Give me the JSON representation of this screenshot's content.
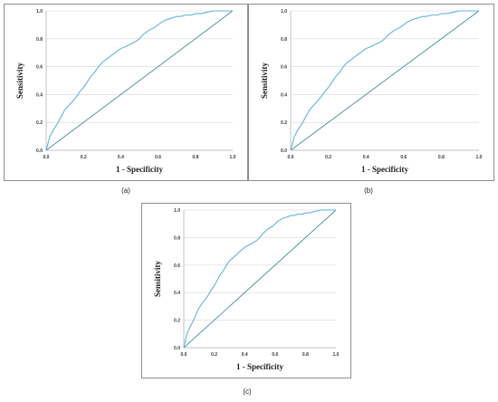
{
  "chart_data": [
    {
      "type": "line",
      "panel_label": "(a)",
      "xlabel": "1 - Specificity",
      "ylabel": "Sensitivity",
      "xlim": [
        0.0,
        1.0
      ],
      "ylim": [
        0.0,
        1.0
      ],
      "x_ticks": [
        "0.0",
        "0.2",
        "0.4",
        "0.6",
        "0.8",
        "1.0"
      ],
      "y_ticks": [
        "0.0",
        "0.2",
        "0.4",
        "0.6",
        "0.8",
        "1.0"
      ],
      "grid": "horizontal",
      "colors": {
        "roc": "#63b3da",
        "reference": "#3e8f97",
        "grid": "#d6d6d6"
      },
      "series": [
        {
          "x": [
            0.0,
            0.01,
            0.02,
            0.04,
            0.06,
            0.08,
            0.1,
            0.12,
            0.14,
            0.16,
            0.18,
            0.2,
            0.22,
            0.24,
            0.26,
            0.28,
            0.3,
            0.32,
            0.34,
            0.36,
            0.38,
            0.4,
            0.42,
            0.45,
            0.48,
            0.5,
            0.52,
            0.55,
            0.58,
            0.6,
            0.62,
            0.65,
            0.68,
            0.7,
            0.72,
            0.75,
            0.78,
            0.8,
            0.83,
            0.86,
            0.9,
            0.94,
            0.97,
            1.0
          ],
          "y": [
            0.0,
            0.05,
            0.1,
            0.15,
            0.19,
            0.24,
            0.29,
            0.32,
            0.35,
            0.38,
            0.42,
            0.45,
            0.49,
            0.53,
            0.56,
            0.6,
            0.63,
            0.65,
            0.67,
            0.69,
            0.71,
            0.73,
            0.74,
            0.76,
            0.78,
            0.8,
            0.83,
            0.86,
            0.88,
            0.9,
            0.92,
            0.94,
            0.95,
            0.96,
            0.96,
            0.97,
            0.97,
            0.98,
            0.98,
            0.99,
            1.0,
            1.0,
            1.0,
            1.0
          ]
        },
        {
          "x": [
            0.0,
            1.0
          ],
          "y": [
            0.0,
            1.0
          ]
        }
      ]
    },
    {
      "type": "line",
      "panel_label": "(b)",
      "xlabel": "1 - Specificity",
      "ylabel": "Sensitivity",
      "xlim": [
        0.0,
        1.0
      ],
      "ylim": [
        0.0,
        1.0
      ],
      "x_ticks": [
        "0.0",
        "0.2",
        "0.4",
        "0.6",
        "0.8",
        "1.0"
      ],
      "y_ticks": [
        "0.0",
        "0.2",
        "0.4",
        "0.6",
        "0.8",
        "1.0"
      ],
      "grid": "horizontal",
      "colors": {
        "roc": "#63b3da",
        "reference": "#3e8f97",
        "grid": "#d6d6d6"
      },
      "series": [
        {
          "x": [
            0.0,
            0.01,
            0.02,
            0.04,
            0.06,
            0.08,
            0.1,
            0.12,
            0.14,
            0.16,
            0.18,
            0.2,
            0.22,
            0.24,
            0.26,
            0.28,
            0.3,
            0.32,
            0.34,
            0.36,
            0.38,
            0.4,
            0.42,
            0.45,
            0.48,
            0.5,
            0.52,
            0.55,
            0.58,
            0.6,
            0.62,
            0.65,
            0.68,
            0.7,
            0.72,
            0.75,
            0.78,
            0.8,
            0.83,
            0.86,
            0.9,
            0.94,
            0.97,
            1.0
          ],
          "y": [
            0.0,
            0.05,
            0.1,
            0.15,
            0.19,
            0.24,
            0.29,
            0.32,
            0.35,
            0.38,
            0.42,
            0.45,
            0.49,
            0.53,
            0.56,
            0.6,
            0.63,
            0.65,
            0.67,
            0.69,
            0.71,
            0.73,
            0.74,
            0.76,
            0.78,
            0.8,
            0.83,
            0.86,
            0.88,
            0.9,
            0.92,
            0.94,
            0.95,
            0.96,
            0.96,
            0.97,
            0.97,
            0.98,
            0.98,
            0.99,
            1.0,
            1.0,
            1.0,
            1.0
          ]
        },
        {
          "x": [
            0.0,
            1.0
          ],
          "y": [
            0.0,
            1.0
          ]
        }
      ]
    },
    {
      "type": "line",
      "panel_label": "(c)",
      "xlabel": "1 - Specificity",
      "ylabel": "Sensitivity",
      "xlim": [
        0.0,
        1.0
      ],
      "ylim": [
        0.0,
        1.0
      ],
      "x_ticks": [
        "0.0",
        "0.2",
        "0.4",
        "0.6",
        "0.8",
        "1.0"
      ],
      "y_ticks": [
        "0.0",
        "0.2",
        "0.4",
        "0.6",
        "0.8",
        "1.0"
      ],
      "grid": "horizontal",
      "colors": {
        "roc": "#63b3da",
        "reference": "#3e8f97",
        "grid": "#d6d6d6"
      },
      "series": [
        {
          "x": [
            0.0,
            0.01,
            0.02,
            0.04,
            0.06,
            0.08,
            0.1,
            0.12,
            0.14,
            0.16,
            0.18,
            0.2,
            0.22,
            0.24,
            0.26,
            0.28,
            0.3,
            0.32,
            0.34,
            0.36,
            0.38,
            0.4,
            0.42,
            0.45,
            0.48,
            0.5,
            0.52,
            0.55,
            0.58,
            0.6,
            0.62,
            0.65,
            0.68,
            0.7,
            0.72,
            0.75,
            0.78,
            0.8,
            0.83,
            0.86,
            0.9,
            0.94,
            0.97,
            1.0
          ],
          "y": [
            0.0,
            0.05,
            0.1,
            0.15,
            0.19,
            0.24,
            0.29,
            0.32,
            0.35,
            0.38,
            0.42,
            0.45,
            0.49,
            0.53,
            0.56,
            0.6,
            0.63,
            0.65,
            0.67,
            0.69,
            0.71,
            0.73,
            0.74,
            0.76,
            0.78,
            0.8,
            0.83,
            0.86,
            0.88,
            0.9,
            0.92,
            0.94,
            0.95,
            0.96,
            0.96,
            0.97,
            0.97,
            0.98,
            0.98,
            0.99,
            1.0,
            1.0,
            1.0,
            1.0
          ]
        },
        {
          "x": [
            0.0,
            1.0
          ],
          "y": [
            0.0,
            1.0
          ]
        }
      ]
    }
  ]
}
